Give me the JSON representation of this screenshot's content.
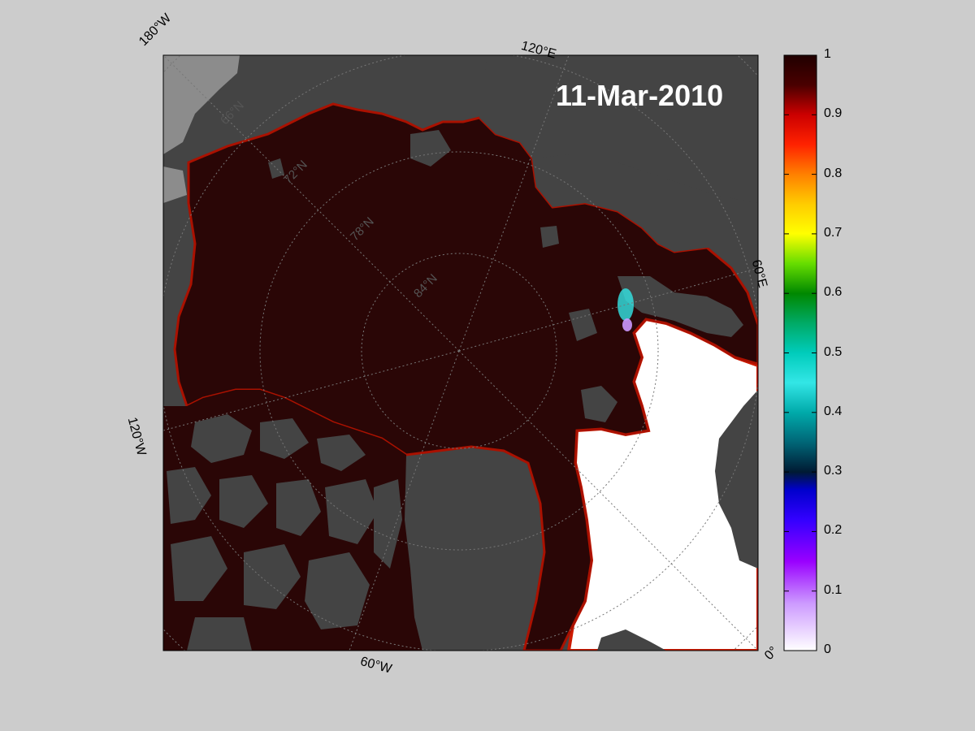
{
  "map": {
    "date_label": "11-Mar-2010",
    "lon_labels": [
      "180°W",
      "120°E",
      "60°E",
      "0°",
      "60°W",
      "120°W"
    ],
    "lat_labels": [
      "66°N",
      "72°N",
      "78°N",
      "84°N"
    ]
  },
  "colorbar": {
    "ticks": [
      "1",
      "0.9",
      "0.8",
      "0.7",
      "0.6",
      "0.5",
      "0.4",
      "0.3",
      "0.2",
      "0.1",
      "0"
    ],
    "range": [
      0,
      1
    ]
  },
  "colors": {
    "background": "#cccccc",
    "land": "#444444",
    "land_light": "#8c8c8c",
    "ice_full": "#2a0606",
    "open_water": "#ffffff",
    "ice_edge": "#cc1a00",
    "date_text": "#ffffff"
  }
}
